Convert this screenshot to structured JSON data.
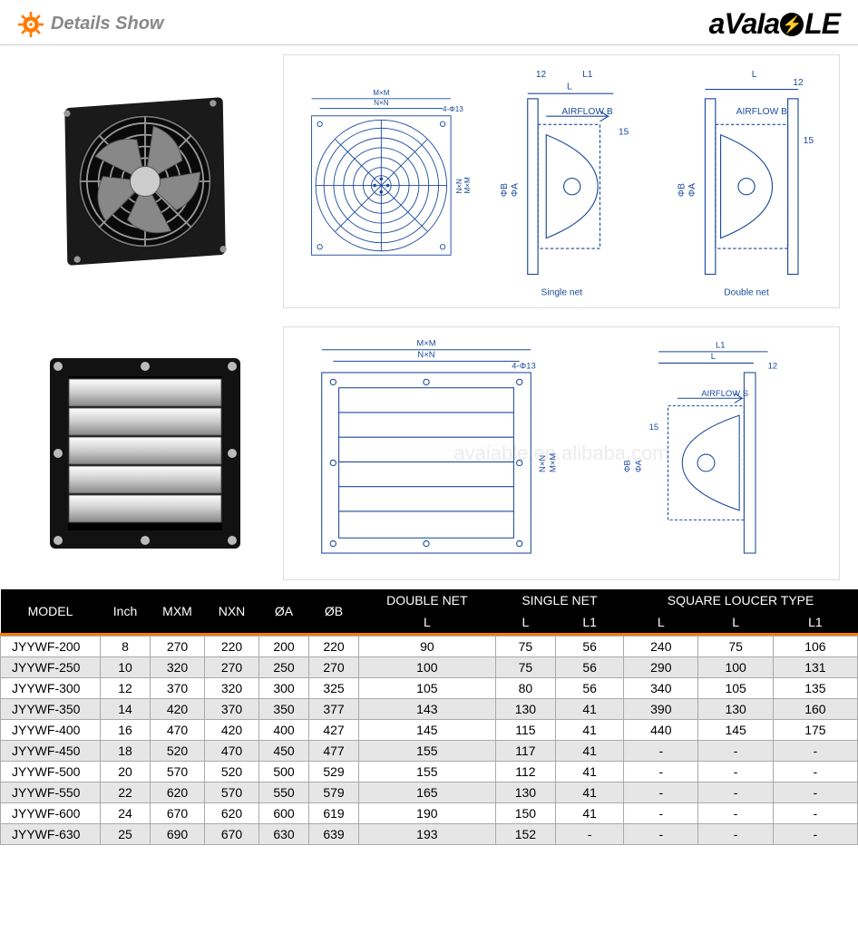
{
  "header": {
    "title": "Details Show",
    "brand_pre": "aVaIa",
    "brand_post": "LE",
    "accent_color": "#ff7a00"
  },
  "watermark": "avaiable.en.alibaba.com",
  "diagram_labels": {
    "mxm": "M×M",
    "nxn": "N×N",
    "hole": "4-Φ13",
    "airflow_b": "AIRFLOW B",
    "airflow_s": "AIRFLOW S",
    "single_net": "Single net",
    "double_net": "Double net",
    "l": "L",
    "l1": "L1",
    "d12": "12",
    "d15": "15",
    "phi_a": "ΦA",
    "phi_b": "ΦB"
  },
  "table": {
    "header_bg": "#000000",
    "header_text": "#ffffff",
    "row_shade": "#e6e6e6",
    "border": "#aaaaaa",
    "sep_color": "#ff7a00",
    "top_headers": [
      "MODEL",
      "Inch",
      "MXM",
      "NXN",
      "ØA",
      "ØB",
      "DOUBLE NET",
      "SINGLE NET",
      "SQUARE LOUCER TYPE"
    ],
    "sub_headers": [
      "",
      "",
      "",
      "",
      "",
      "",
      "L",
      "L",
      "L1",
      "L",
      "L",
      "L1"
    ],
    "rows": [
      [
        "JYYWF-200",
        "8",
        "270",
        "220",
        "200",
        "220",
        "90",
        "75",
        "56",
        "240",
        "75",
        "106"
      ],
      [
        "JYYWF-250",
        "10",
        "320",
        "270",
        "250",
        "270",
        "100",
        "75",
        "56",
        "290",
        "100",
        "131"
      ],
      [
        "JYYWF-300",
        "12",
        "370",
        "320",
        "300",
        "325",
        "105",
        "80",
        "56",
        "340",
        "105",
        "135"
      ],
      [
        "JYYWF-350",
        "14",
        "420",
        "370",
        "350",
        "377",
        "143",
        "130",
        "41",
        "390",
        "130",
        "160"
      ],
      [
        "JYYWF-400",
        "16",
        "470",
        "420",
        "400",
        "427",
        "145",
        "115",
        "41",
        "440",
        "145",
        "175"
      ],
      [
        "JYYWF-450",
        "18",
        "520",
        "470",
        "450",
        "477",
        "155",
        "117",
        "41",
        "-",
        "-",
        "-"
      ],
      [
        "JYYWF-500",
        "20",
        "570",
        "520",
        "500",
        "529",
        "155",
        "112",
        "41",
        "-",
        "-",
        "-"
      ],
      [
        "JYYWF-550",
        "22",
        "620",
        "570",
        "550",
        "579",
        "165",
        "130",
        "41",
        "-",
        "-",
        "-"
      ],
      [
        "JYYWF-600",
        "24",
        "670",
        "620",
        "600",
        "619",
        "190",
        "150",
        "41",
        "-",
        "-",
        "-"
      ],
      [
        "JYYWF-630",
        "25",
        "690",
        "670",
        "630",
        "639",
        "193",
        "152",
        "-",
        "-",
        "-",
        "-"
      ]
    ]
  }
}
